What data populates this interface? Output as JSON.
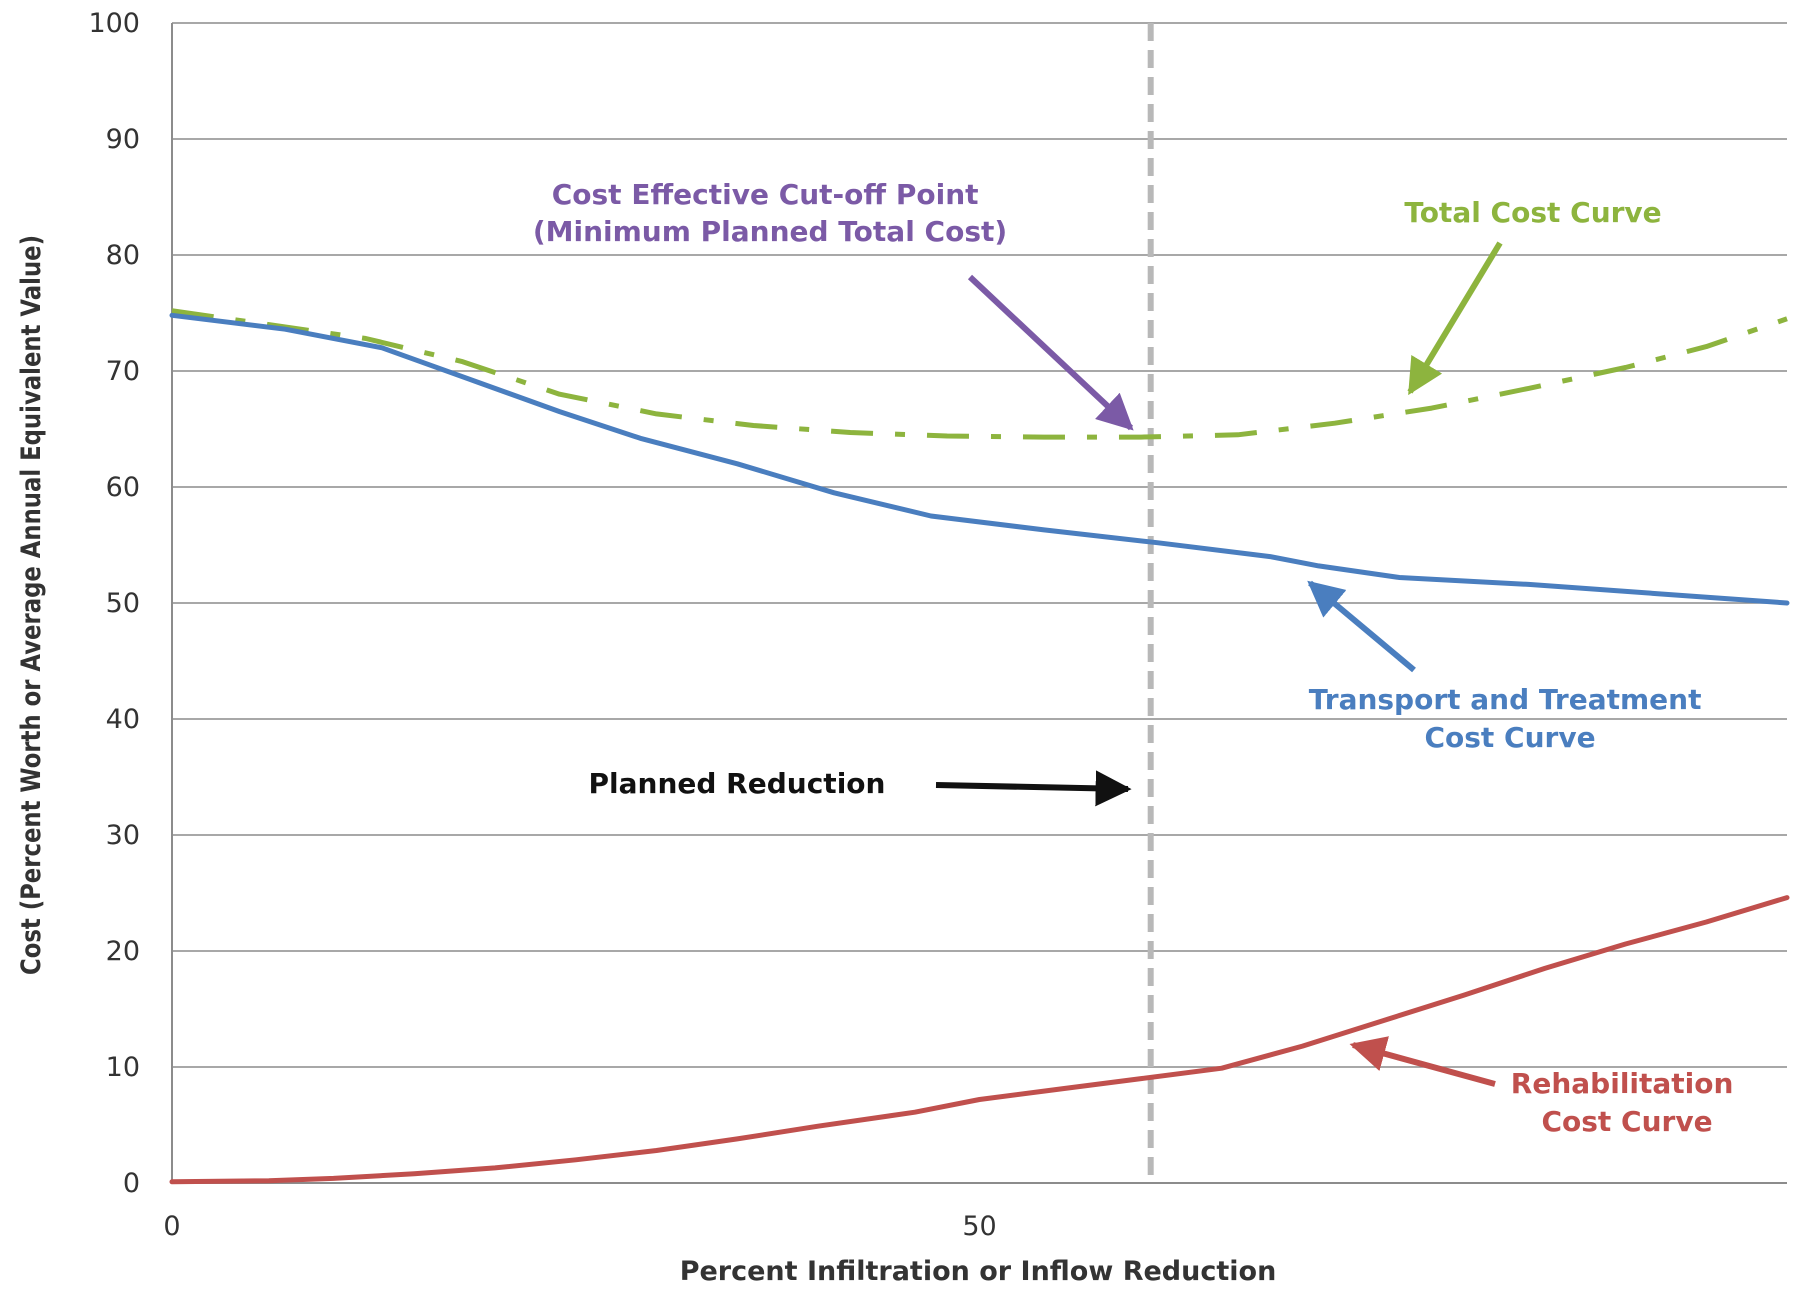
{
  "chart_data": {
    "type": "line",
    "title": "",
    "xlabel": "Percent Infiltration or Inflow Reduction",
    "ylabel": "Cost (Percent Worth or Average Annual Equivalent Value)",
    "xlim": [
      0,
      100
    ],
    "ylim": [
      0,
      100
    ],
    "x_ticks": [
      0,
      50
    ],
    "y_ticks": [
      0,
      10,
      20,
      30,
      40,
      50,
      60,
      70,
      80,
      90,
      100
    ],
    "grid": true,
    "planned_reduction_x": 60.6,
    "series": [
      {
        "name": "Total Cost Curve",
        "style": "dash-dot",
        "color": "#8db43e",
        "points": [
          [
            0,
            75.2
          ],
          [
            6,
            74.0
          ],
          [
            12,
            72.8
          ],
          [
            18,
            70.8
          ],
          [
            24,
            68.0
          ],
          [
            30,
            66.3
          ],
          [
            36,
            65.3
          ],
          [
            42,
            64.7
          ],
          [
            48,
            64.4
          ],
          [
            54,
            64.3
          ],
          [
            60,
            64.3
          ],
          [
            66,
            64.5
          ],
          [
            72,
            65.5
          ],
          [
            78,
            66.8
          ],
          [
            84,
            68.5
          ],
          [
            90,
            70.3
          ],
          [
            95,
            72.1
          ],
          [
            100,
            74.5
          ]
        ]
      },
      {
        "name": "Transport and Treatment Cost Curve",
        "style": "solid",
        "color": "#4a7ebf",
        "points": [
          [
            0,
            74.8
          ],
          [
            7,
            73.6
          ],
          [
            13,
            72.0
          ],
          [
            19,
            69.0
          ],
          [
            24,
            66.5
          ],
          [
            29,
            64.2
          ],
          [
            35,
            62.0
          ],
          [
            41,
            59.5
          ],
          [
            47,
            57.5
          ],
          [
            54,
            56.3
          ],
          [
            61,
            55.2
          ],
          [
            68,
            54.0
          ],
          [
            71,
            53.2
          ],
          [
            76,
            52.2
          ],
          [
            84,
            51.6
          ],
          [
            92,
            50.8
          ],
          [
            100,
            50.0
          ]
        ]
      },
      {
        "name": "Rehabilitation Cost Curve",
        "style": "solid",
        "color": "#c0504d",
        "points": [
          [
            0,
            0.1
          ],
          [
            6,
            0.2
          ],
          [
            10,
            0.4
          ],
          [
            15,
            0.8
          ],
          [
            20,
            1.3
          ],
          [
            25,
            2.0
          ],
          [
            30,
            2.8
          ],
          [
            35,
            3.8
          ],
          [
            40,
            4.9
          ],
          [
            46,
            6.1
          ],
          [
            50,
            7.2
          ],
          [
            55,
            8.1
          ],
          [
            60,
            9.0
          ],
          [
            65,
            9.9
          ],
          [
            70,
            11.8
          ],
          [
            75,
            14.0
          ],
          [
            80,
            16.2
          ],
          [
            85,
            18.5
          ],
          [
            90,
            20.6
          ],
          [
            95,
            22.5
          ],
          [
            100,
            24.6
          ]
        ]
      }
    ],
    "annotations": [
      {
        "id": "cutoff",
        "lines": [
          "Cost Effective Cut-off Point",
          "(Minimum Planned Total Cost)"
        ],
        "color": "#7b5aa6"
      },
      {
        "id": "total",
        "lines": [
          "Total Cost Curve"
        ],
        "color": "#8db43e"
      },
      {
        "id": "transport",
        "lines": [
          "Transport and Treatment",
          "Cost Curve"
        ],
        "color": "#4a7ebf"
      },
      {
        "id": "rehab",
        "lines": [
          "Rehabilitation",
          "Cost Curve"
        ],
        "color": "#c0504d"
      },
      {
        "id": "planned",
        "lines": [
          "Planned Reduction"
        ],
        "color": "#111111"
      }
    ]
  }
}
